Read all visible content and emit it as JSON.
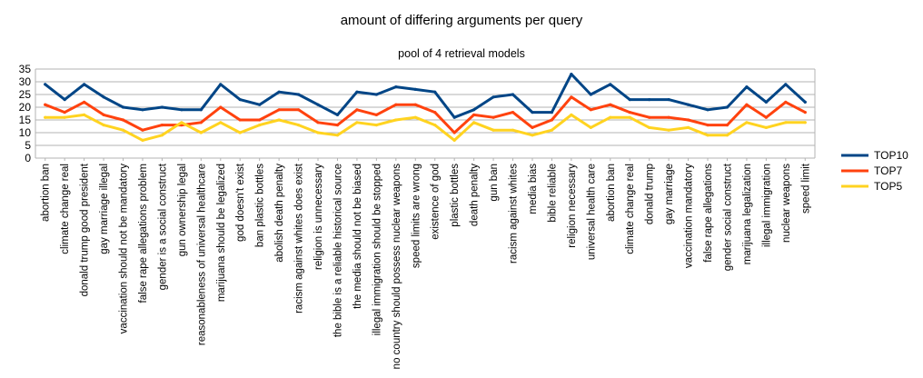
{
  "chart_data": {
    "type": "line",
    "title": "amount of differing arguments per query",
    "subtitle": "pool of 4 retrieval models",
    "xlabel": "",
    "ylabel": "",
    "ylim": [
      0,
      35
    ],
    "yticks": [
      0,
      5,
      10,
      15,
      20,
      25,
      30,
      35
    ],
    "grid": true,
    "legend": "right",
    "categories": [
      "abortion ban",
      "climate change real",
      "donald trump good president",
      "gay marriage illegal",
      "vaccination should not be mandatory",
      "false rape allegations problem",
      "gender is a social construct",
      "gun ownership legal",
      "reasonableness of universal healthcare",
      "marijuana should be legalized",
      "god doesn't exist",
      "ban plastic bottles",
      "abolish death penalty",
      "racism against whites does exist",
      "religion is unnecessary",
      "the bible is a reliable historical source",
      "the media should not be biased",
      "illegal immigration should be stopped",
      "no country should possess nuclear weapons",
      "speed limits are wrong",
      "existence of god",
      "plastic bottles",
      "death penalty",
      "gun ban",
      "racism against whites",
      "media bias",
      "bible reliable",
      "religion necessary",
      "universal health care",
      "abortion ban",
      "climate change real",
      "donald trump",
      "gay marriage",
      "vaccination mandatory",
      "false rape allegations",
      "gender social construct",
      "marijuana legalization",
      "illegal immigration",
      "nuclear weapons",
      "speed limit"
    ],
    "series": [
      {
        "name": "TOP10",
        "color": "#004586",
        "values": [
          29,
          23,
          29,
          24,
          20,
          19,
          20,
          19,
          19,
          29,
          23,
          21,
          26,
          25,
          21,
          17,
          26,
          25,
          28,
          27,
          26,
          16,
          19,
          24,
          25,
          18,
          18,
          33,
          25,
          29,
          23,
          23,
          23,
          21,
          19,
          20,
          28,
          22,
          29,
          22
        ]
      },
      {
        "name": "TOP7",
        "color": "#ff420e",
        "values": [
          21,
          18,
          22,
          17,
          15,
          11,
          13,
          13,
          14,
          20,
          15,
          15,
          19,
          19,
          14,
          13,
          19,
          17,
          21,
          21,
          18,
          10,
          17,
          16,
          18,
          12,
          15,
          24,
          19,
          21,
          18,
          16,
          16,
          15,
          13,
          13,
          21,
          16,
          22,
          18
        ]
      },
      {
        "name": "TOP5",
        "color": "#ffd320",
        "values": [
          16,
          16,
          17,
          13,
          11,
          7,
          9,
          14,
          10,
          14,
          10,
          13,
          15,
          13,
          10,
          9,
          14,
          13,
          15,
          16,
          13,
          7,
          14,
          11,
          11,
          9,
          11,
          17,
          12,
          16,
          16,
          12,
          11,
          12,
          9,
          9,
          14,
          12,
          14,
          14
        ]
      }
    ]
  }
}
